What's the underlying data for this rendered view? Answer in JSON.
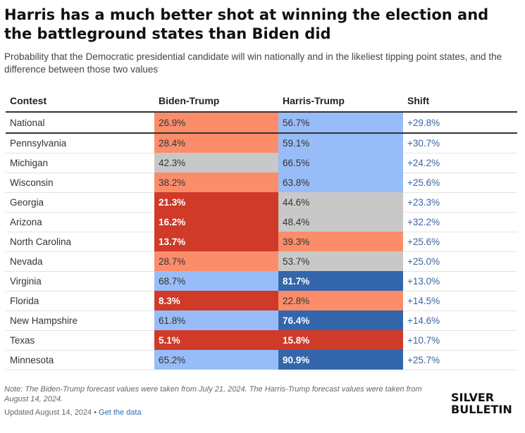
{
  "title": "Harris has a much better shot at winning the election and the battleground states than Biden did",
  "subtitle": "Probability that the Democratic presidential candidate will win nationally and in the likeliest tipping point states, and the difference between those two values",
  "chart_data": {
    "type": "table",
    "columns": [
      "Contest",
      "Biden-Trump",
      "Harris-Trump",
      "Shift"
    ],
    "rows": [
      {
        "contest": "National",
        "biden": "26.9%",
        "harris": "56.7%",
        "shift": "+29.8%",
        "biden_color": "#fc8d6b",
        "harris_color": "#98bcf7",
        "biden_white": false,
        "harris_white": false
      },
      {
        "contest": "Pennsylvania",
        "biden": "28.4%",
        "harris": "59.1%",
        "shift": "+30.7%",
        "biden_color": "#fc8d6b",
        "harris_color": "#98bcf7",
        "biden_white": false,
        "harris_white": false
      },
      {
        "contest": "Michigan",
        "biden": "42.3%",
        "harris": "66.5%",
        "shift": "+24.2%",
        "biden_color": "#c8c8c8",
        "harris_color": "#98bcf7",
        "biden_white": false,
        "harris_white": false
      },
      {
        "contest": "Wisconsin",
        "biden": "38.2%",
        "harris": "63.8%",
        "shift": "+25.6%",
        "biden_color": "#fc8d6b",
        "harris_color": "#98bcf7",
        "biden_white": false,
        "harris_white": false
      },
      {
        "contest": "Georgia",
        "biden": "21.3%",
        "harris": "44.6%",
        "shift": "+23.3%",
        "biden_color": "#cf3a29",
        "harris_color": "#c8c8c8",
        "biden_white": true,
        "harris_white": false
      },
      {
        "contest": "Arizona",
        "biden": "16.2%",
        "harris": "48.4%",
        "shift": "+32.2%",
        "biden_color": "#cf3a29",
        "harris_color": "#c8c8c8",
        "biden_white": true,
        "harris_white": false
      },
      {
        "contest": "North Carolina",
        "biden": "13.7%",
        "harris": "39.3%",
        "shift": "+25.6%",
        "biden_color": "#cf3a29",
        "harris_color": "#fc8d6b",
        "biden_white": true,
        "harris_white": false
      },
      {
        "contest": "Nevada",
        "biden": "28.7%",
        "harris": "53.7%",
        "shift": "+25.0%",
        "biden_color": "#fc8d6b",
        "harris_color": "#c8c8c8",
        "biden_white": false,
        "harris_white": false
      },
      {
        "contest": "Virginia",
        "biden": "68.7%",
        "harris": "81.7%",
        "shift": "+13.0%",
        "biden_color": "#98bcf7",
        "harris_color": "#3466ab",
        "biden_white": false,
        "harris_white": true
      },
      {
        "contest": "Florida",
        "biden": "8.3%",
        "harris": "22.8%",
        "shift": "+14.5%",
        "biden_color": "#cf3a29",
        "harris_color": "#fc8d6b",
        "biden_white": true,
        "harris_white": false
      },
      {
        "contest": "New Hampshire",
        "biden": "61.8%",
        "harris": "76.4%",
        "shift": "+14.6%",
        "biden_color": "#98bcf7",
        "harris_color": "#3466ab",
        "biden_white": false,
        "harris_white": true
      },
      {
        "contest": "Texas",
        "biden": "5.1%",
        "harris": "15.8%",
        "shift": "+10.7%",
        "biden_color": "#cf3a29",
        "harris_color": "#cf3a29",
        "biden_white": true,
        "harris_white": true
      },
      {
        "contest": "Minnesota",
        "biden": "65.2%",
        "harris": "90.9%",
        "shift": "+25.7%",
        "biden_color": "#98bcf7",
        "harris_color": "#3466ab",
        "biden_white": false,
        "harris_white": true
      }
    ]
  },
  "note": "Note: The Biden-Trump forecast values were taken from July 21, 2024. The Harris-Trump forecast values were taken from August 14, 2024.",
  "updated": "Updated August 14, 2024",
  "separator": "•",
  "get_data_link": "Get the data",
  "logo": {
    "line1": "SILVER",
    "line2": "BULLETIN"
  }
}
